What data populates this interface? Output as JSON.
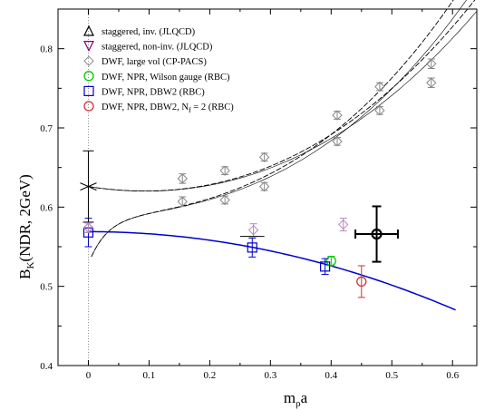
{
  "chart_data": {
    "type": "scatter",
    "xlabel": "m",
    "xlabel_sub": "ρ",
    "xlabel_suffix": "a",
    "ylabel": "B",
    "ylabel_sub": "K",
    "ylabel_suffix": "(NDR, 2GeV)",
    "xlim": [
      -0.05,
      0.64
    ],
    "ylim": [
      0.4,
      0.85
    ],
    "x_ticks": [
      "0",
      "0.1",
      "0.2",
      "0.3",
      "0.4",
      "0.5",
      "0.6"
    ],
    "y_ticks": [
      "0.4",
      "0.5",
      "0.6",
      "0.7",
      "0.8"
    ],
    "legend_position": "top-left",
    "series": [
      {
        "name": "staggered, inv. (JLQCD)",
        "marker": "triangle-up",
        "color": "#000000",
        "points": []
      },
      {
        "name": "staggered, non-inv. (JLQCD)",
        "marker": "triangle-down",
        "color": "#800080",
        "points": []
      },
      {
        "name": "DWF, large vol (CP-PACS)",
        "marker": "diamond",
        "color": "#888888",
        "points": [
          {
            "x": 0.0,
            "y": 0.574,
            "err": 0.006
          },
          {
            "x": 0.155,
            "y": 0.636,
            "err": 0.006
          },
          {
            "x": 0.155,
            "y": 0.607,
            "err": 0.006
          },
          {
            "x": 0.225,
            "y": 0.646,
            "err": 0.005
          },
          {
            "x": 0.225,
            "y": 0.609,
            "err": 0.005
          },
          {
            "x": 0.29,
            "y": 0.663,
            "err": 0.005
          },
          {
            "x": 0.29,
            "y": 0.626,
            "err": 0.005
          },
          {
            "x": 0.41,
            "y": 0.716,
            "err": 0.005
          },
          {
            "x": 0.41,
            "y": 0.683,
            "err": 0.005
          },
          {
            "x": 0.48,
            "y": 0.752,
            "err": 0.005
          },
          {
            "x": 0.48,
            "y": 0.722,
            "err": 0.005
          },
          {
            "x": 0.565,
            "y": 0.781,
            "err": 0.006
          },
          {
            "x": 0.565,
            "y": 0.757,
            "err": 0.006
          }
        ]
      },
      {
        "name": "DWF, NPR, Wilson gauge (RBC)",
        "marker": "circle",
        "color": "#00cc00",
        "points": [
          {
            "x": 0.4,
            "y": 0.532,
            "err": 0.006
          }
        ]
      },
      {
        "name": "DWF, NPR, DBW2 (RBC)",
        "marker": "square",
        "color": "#0000cc",
        "points": [
          {
            "x": 0.0,
            "y": 0.568,
            "err": 0.018
          },
          {
            "x": 0.27,
            "y": 0.549,
            "err": 0.012
          },
          {
            "x": 0.39,
            "y": 0.525,
            "err": 0.01
          }
        ]
      },
      {
        "name": "DWF, NPR, DBW2, N_f = 2 (RBC)",
        "marker": "circle",
        "color": "#cc3333",
        "points": [
          {
            "x": 0.45,
            "y": 0.506,
            "err": 0.02
          }
        ]
      }
    ],
    "extra_points": [
      {
        "x": 0.0,
        "y": 0.626,
        "err": 0.045,
        "xerr": 0.01,
        "color": "#000000",
        "marker": "cross"
      },
      {
        "x": 0.272,
        "y": 0.571,
        "err": 0.008,
        "color": "#bb88bb",
        "marker": "diamond"
      },
      {
        "x": 0.42,
        "y": 0.578,
        "err": 0.008,
        "color": "#bb88bb",
        "marker": "diamond"
      },
      {
        "x": 0.0,
        "y": 0.574,
        "err": 0.006,
        "color": "#bb88bb",
        "marker": "diamond"
      },
      {
        "x": 0.475,
        "y": 0.566,
        "err": 0.035,
        "xerr": 0.035,
        "color": "#000000",
        "marker": "circle-cross-bold"
      }
    ],
    "curves": [
      {
        "type": "quadratic",
        "color": "#000000",
        "style": "dashed",
        "a": 0.623,
        "b": -0.152,
        "c": 0.7,
        "xmax": 0.64
      },
      {
        "type": "quadratic-upper",
        "color": "#000000",
        "style": "dashed",
        "a": 0.57,
        "b": -0.13,
        "c": 0.75,
        "xmax": 0.64
      },
      {
        "type": "blue",
        "color": "#0000cc",
        "style": "solid",
        "a": 0.569,
        "b": -0.02,
        "c": -0.25,
        "xmax": 0.605
      }
    ]
  }
}
